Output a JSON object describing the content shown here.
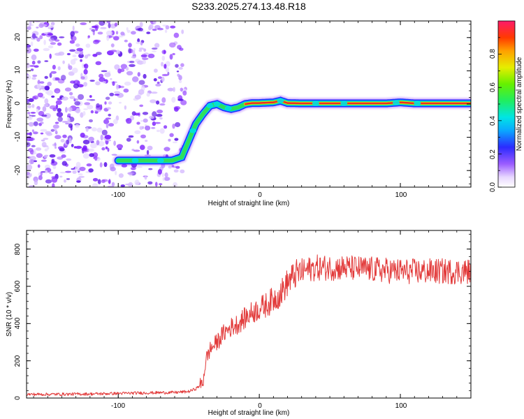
{
  "title": "S233.2025.274.13.48.R18",
  "chart_data": [
    {
      "type": "heatmap",
      "xlabel": "Height of straight line (km)",
      "ylabel": "Frequency (Hz)",
      "xlim": [
        -165,
        150
      ],
      "ylim": [
        -25,
        25
      ],
      "xticks": [
        -100,
        0,
        100
      ],
      "yticks": [
        -20,
        -10,
        0,
        10,
        20
      ],
      "colorbar": {
        "label": "Normalized spectral amplitude",
        "range": [
          0,
          1
        ],
        "ticks": [
          "0.0",
          "0.2",
          "0.4",
          "0.6",
          "0.8"
        ]
      },
      "ridge": {
        "x": [
          -100,
          -90,
          -80,
          -70,
          -62,
          -55,
          -50,
          -45,
          -40,
          -35,
          -30,
          -25,
          -20,
          -15,
          -10,
          -5,
          0,
          10,
          15,
          20,
          30,
          50,
          70,
          90,
          100,
          110,
          120,
          150
        ],
        "y": [
          -17,
          -17,
          -17,
          -17,
          -17,
          -16,
          -11,
          -6,
          -3,
          -0.5,
          0,
          -1,
          -1.5,
          -1,
          0,
          0.3,
          0.3,
          0.5,
          1,
          0.3,
          0.2,
          0.2,
          0.2,
          0.2,
          0.5,
          0.2,
          0.2,
          0.2
        ]
      }
    },
    {
      "type": "line",
      "xlabel": "Height of straight line (km)",
      "ylabel": "SNR (10 * v/v)",
      "xlim": [
        -165,
        150
      ],
      "ylim": [
        0,
        900
      ],
      "xticks": [
        -100,
        0,
        100
      ],
      "yticks": [
        0,
        200,
        400,
        600,
        800
      ],
      "line_color": "#e23a3a",
      "x": [
        -165,
        -150,
        -120,
        -100,
        -80,
        -60,
        -50,
        -45,
        -40,
        -38,
        -35,
        -30,
        -25,
        -20,
        -15,
        -10,
        -5,
        0,
        5,
        10,
        15,
        20,
        25,
        30,
        40,
        60,
        80,
        100,
        120,
        150
      ],
      "y": [
        20,
        20,
        22,
        25,
        28,
        30,
        35,
        50,
        80,
        200,
        260,
        300,
        350,
        380,
        400,
        430,
        460,
        480,
        500,
        530,
        560,
        620,
        660,
        680,
        700,
        700,
        690,
        680,
        680,
        680
      ]
    }
  ]
}
